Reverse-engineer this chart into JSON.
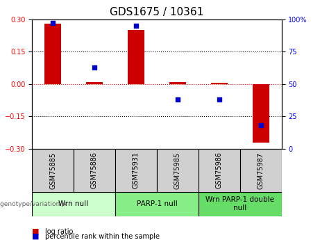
{
  "title": "GDS1675 / 10361",
  "samples": [
    "GSM75885",
    "GSM75886",
    "GSM75931",
    "GSM75985",
    "GSM75986",
    "GSM75987"
  ],
  "log_ratio": [
    0.28,
    0.01,
    0.25,
    0.01,
    0.005,
    -0.27
  ],
  "percentile": [
    97,
    63,
    95,
    38,
    38,
    18
  ],
  "ylim_left": [
    -0.3,
    0.3
  ],
  "ylim_right": [
    0,
    100
  ],
  "yticks_left": [
    -0.3,
    -0.15,
    0,
    0.15,
    0.3
  ],
  "yticks_right": [
    0,
    25,
    50,
    75,
    100
  ],
  "bar_color": "#cc0000",
  "dot_color": "#0000cc",
  "sample_box_color": "#d0d0d0",
  "groups": [
    {
      "label": "Wrn null",
      "start": 0,
      "end": 2,
      "color": "#ccffcc"
    },
    {
      "label": "PARP-1 null",
      "start": 2,
      "end": 4,
      "color": "#88ee88"
    },
    {
      "label": "Wrn PARP-1 double\nnull",
      "start": 4,
      "end": 6,
      "color": "#66dd66"
    }
  ],
  "legend_red": "log ratio",
  "legend_blue": "percentile rank within the sample",
  "genotype_label": "genotype/variation",
  "title_fontsize": 11,
  "tick_fontsize": 7,
  "label_fontsize": 7,
  "group_fontsize": 7.5
}
